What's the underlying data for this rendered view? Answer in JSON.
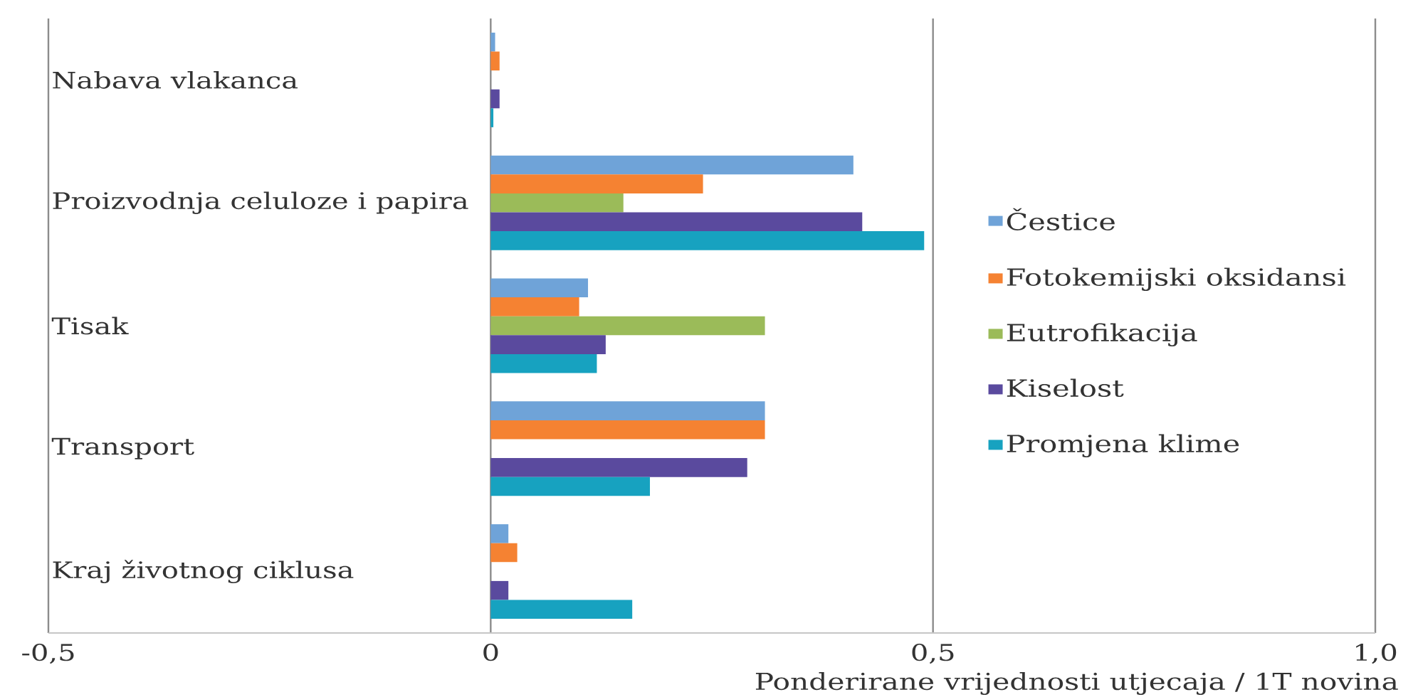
{
  "chart_data": {
    "type": "bar",
    "orientation": "horizontal",
    "categories": [
      "Nabava vlakanca",
      "Proizvodnja celuloze i papira",
      "Tisak",
      "Transport",
      "Kraj životnog ciklusa"
    ],
    "series": [
      {
        "name": "Čestice",
        "color": "#6fa3d8",
        "values": [
          0.005,
          0.41,
          0.11,
          0.31,
          0.02
        ]
      },
      {
        "name": "Fotokemijski oksidansi",
        "color": "#f58232",
        "values": [
          0.01,
          0.24,
          0.1,
          0.31,
          0.03
        ]
      },
      {
        "name": "Eutrofikacija",
        "color": "#9bbb59",
        "values": [
          null,
          0.15,
          0.31,
          null,
          null
        ]
      },
      {
        "name": "Kiselost",
        "color": "#5a4a9e",
        "values": [
          0.01,
          0.42,
          0.13,
          0.29,
          0.02
        ]
      },
      {
        "name": "Promjena klime",
        "color": "#17a2c0",
        "values": [
          0.003,
          0.49,
          0.12,
          0.18,
          0.16
        ]
      }
    ],
    "xlim": [
      -0.5,
      1.0
    ],
    "xticks": [
      {
        "value": -0.5,
        "label": "-0,5"
      },
      0,
      {
        "value": 0.5,
        "label": "0,5"
      },
      {
        "value": 1.0,
        "label": "1,0"
      }
    ],
    "xlabel": "Ponderirane vrijednosti utjecaja / 1T novina",
    "grid": "x",
    "legend": "right"
  }
}
